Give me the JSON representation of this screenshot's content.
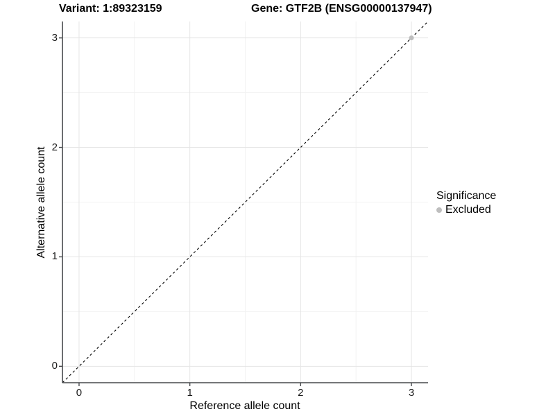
{
  "titles": {
    "variant": "Variant: 1:89323159",
    "gene": "Gene: GTF2B (ENSG00000137947)"
  },
  "chart_data": {
    "type": "scatter",
    "title": "Variant: 1:89323159    Gene: GTF2B (ENSG00000137947)",
    "xlabel": "Reference allele count",
    "ylabel": "Alternative allele count",
    "xlim": [
      -0.15,
      3.15
    ],
    "ylim": [
      -0.15,
      3.15
    ],
    "xticks": [
      0,
      1,
      2,
      3
    ],
    "yticks": [
      0,
      1,
      2,
      3
    ],
    "minor_xticks": [
      0.5,
      1.5,
      2.5
    ],
    "minor_yticks": [
      0.5,
      1.5,
      2.5
    ],
    "grid": "major and minor, light gray on white panel",
    "series": [
      {
        "name": "Excluded",
        "color": "#bebebe",
        "points": [
          {
            "x": 3,
            "y": 3
          }
        ]
      }
    ],
    "identity_line": {
      "style": "dashed",
      "color": "#000000",
      "from": [
        -0.15,
        -0.15
      ],
      "to": [
        3.15,
        3.15
      ]
    },
    "legend": {
      "title": "Significance",
      "position": "right",
      "items": [
        {
          "label": "Excluded",
          "color": "#bebebe"
        }
      ]
    },
    "colors": {
      "major_grid": "#e5e5e5",
      "minor_grid": "#f2f2f2",
      "axis_line": "#47494c",
      "tick_mark": "#47494c",
      "background": "#ffffff"
    }
  }
}
